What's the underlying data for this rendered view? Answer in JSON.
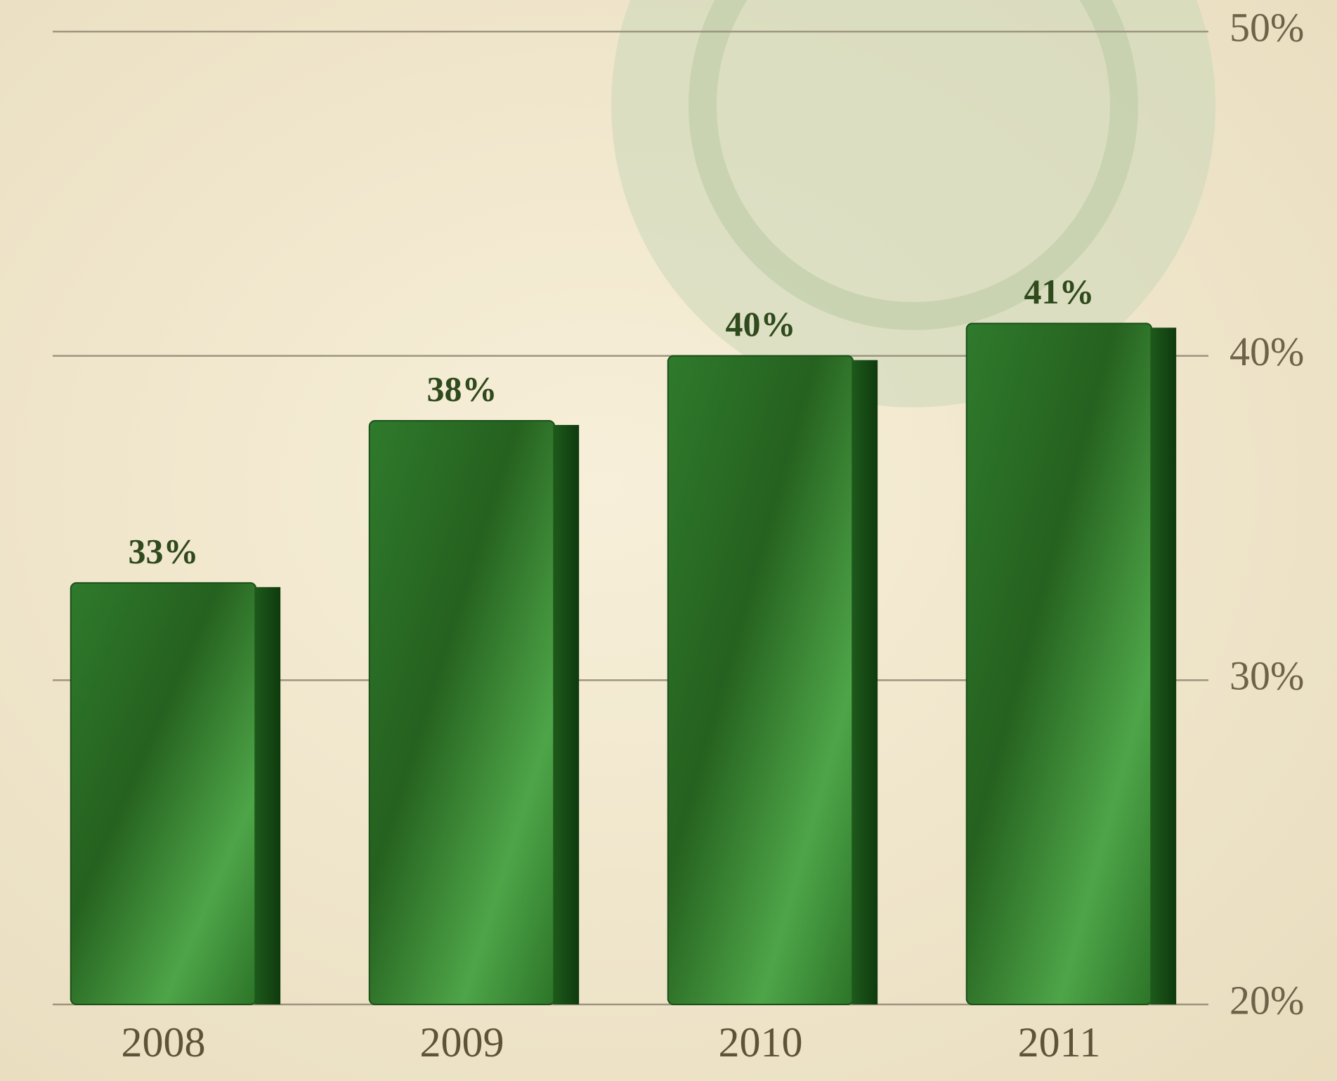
{
  "chart_data": {
    "type": "bar",
    "categories": [
      "2008",
      "2009",
      "2010",
      "2011"
    ],
    "values": [
      33,
      38,
      40,
      41
    ],
    "value_labels": [
      "33%",
      "38%",
      "40%",
      "41%"
    ],
    "color": "#3e8f3a",
    "ylim": [
      20,
      50
    ],
    "yticks": [
      {
        "value": 20,
        "label": "20%"
      },
      {
        "value": 30,
        "label": "30%"
      },
      {
        "value": 40,
        "label": "40%"
      },
      {
        "value": 50,
        "label": "50%"
      }
    ],
    "grid": true
  }
}
